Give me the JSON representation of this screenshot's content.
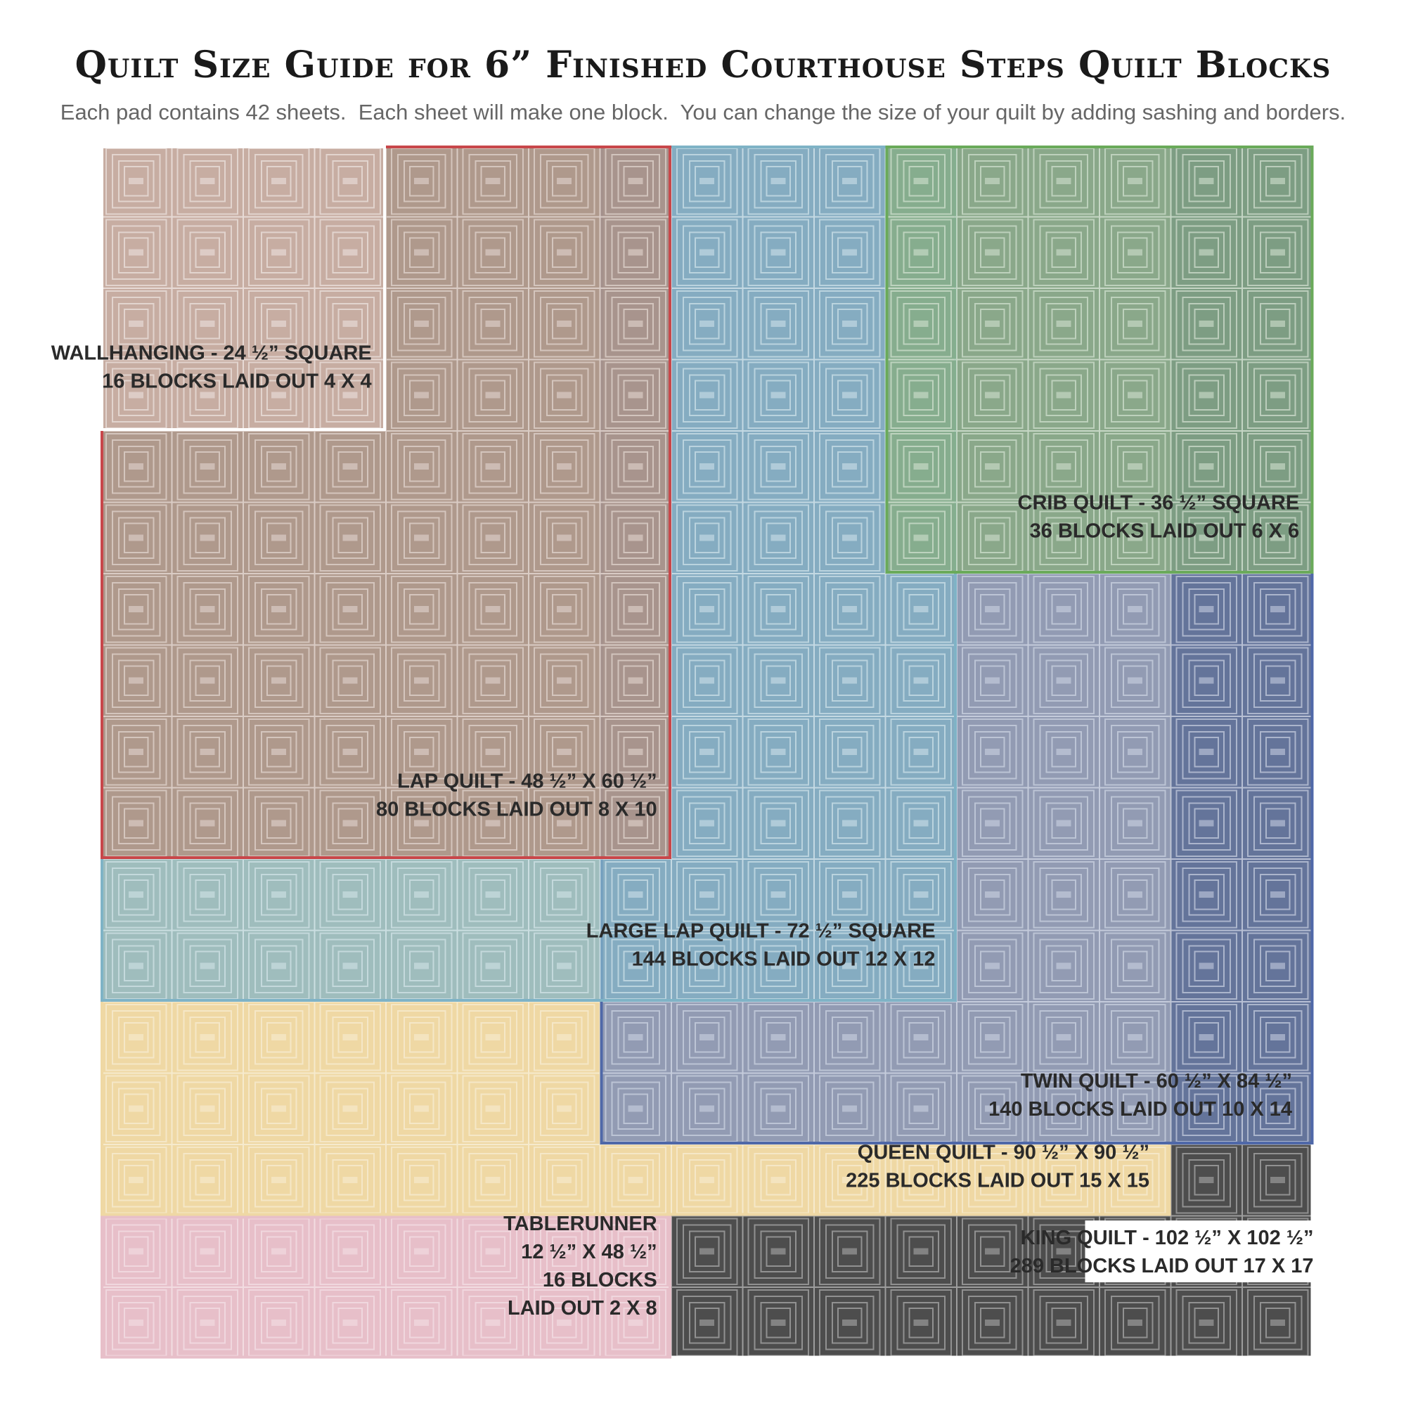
{
  "title": "Quilt Size Guide for 6” Finished Courthouse Steps Quilt Blocks",
  "subtitle": "Each pad contains 42 sheets.  Each sheet will make one block.  You can change the size of your quilt by adding sashing and borders.",
  "sizes": [
    {
      "id": "king",
      "cols": 17,
      "rows": 17,
      "fill": "#3a3a3a",
      "stroke": "#ffffff",
      "lines": [
        "KING QUILT - 102 ½” X 102 ½”",
        "289 BLOCKS LAID OUT 17 X 17"
      ]
    },
    {
      "id": "queen",
      "cols": 15,
      "rows": 15,
      "fill": "#efd8a4",
      "stroke": "#efd8a4",
      "lines": [
        "QUEEN QUILT - 90 ½” X 90 ½”",
        "225 BLOCKS LAID OUT 15 X 15"
      ]
    },
    {
      "id": "tablerunner",
      "cols": 8,
      "rows": 2,
      "fill": "#e7bfc9",
      "stroke": "#e7bfc9",
      "lines": [
        "TABLERUNNER",
        "12 ½” X 48 ½”",
        "16 BLOCKS",
        "LAID OUT 2 X 8"
      ]
    },
    {
      "id": "twin",
      "cols": 10,
      "rows": 14,
      "fill": "#6d84b8",
      "stroke": "#4f68a8",
      "lines": [
        "TWIN QUILT - 60 ½” X 84 ½”",
        "140 BLOCKS LAID OUT 10 X 14"
      ]
    },
    {
      "id": "large_lap",
      "cols": 12,
      "rows": 12,
      "fill": "#7fb3c6",
      "stroke": "#7fb3c6",
      "lines": [
        "LARGE LAP QUILT - 72 ½” SQUARE",
        "144 BLOCKS LAID OUT 12 X 12"
      ]
    },
    {
      "id": "lap",
      "cols": 8,
      "rows": 10,
      "fill": "#b68a78",
      "stroke": "#c8474a",
      "lines": [
        "LAP QUILT - 48 ½” X 60 ½”",
        "80 BLOCKS LAID OUT 8 X 10"
      ]
    },
    {
      "id": "crib",
      "cols": 6,
      "rows": 6,
      "fill": "#86ad7a",
      "stroke": "#6aaa5a",
      "lines": [
        "CRIB QUILT - 36 ½” SQUARE",
        "36 BLOCKS LAID OUT 6 X 6"
      ]
    },
    {
      "id": "wallhanging",
      "cols": 4,
      "rows": 4,
      "fill": "#d0b4aa",
      "stroke": "#ffffff",
      "lines": [
        "WALLHANGING - 24 ½” SQUARE",
        "16 BLOCKS LAID OUT 4 X 4"
      ]
    }
  ]
}
